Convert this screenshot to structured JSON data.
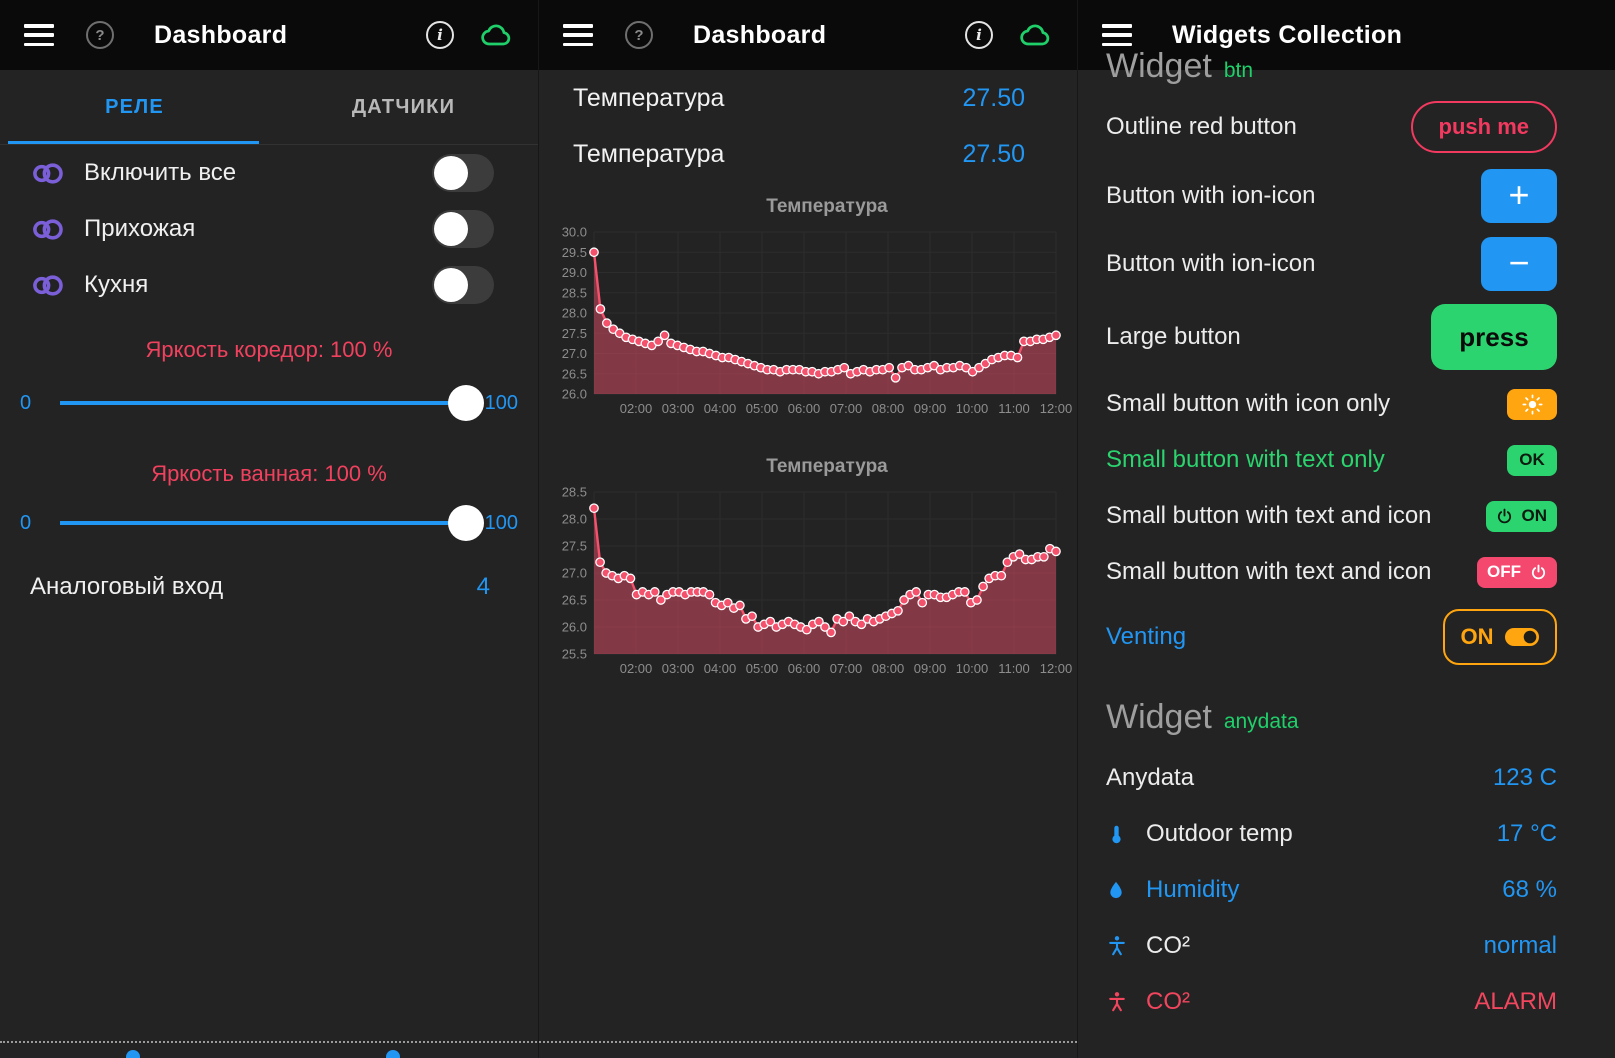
{
  "theme": {
    "blue": "#2196f3",
    "green": "#2bd46e",
    "red": "#f2395f",
    "pink": "#f5486e",
    "amber": "#ffa50f",
    "purple": "#7a5fd8",
    "value_red": "#f2465e"
  },
  "icon_glyphs": {
    "help": "?",
    "info": "i",
    "plus": "+",
    "minus": "−"
  },
  "panels": {
    "relay": {
      "header": {
        "title": "Dashboard"
      },
      "tabs": [
        {
          "label": "РЕЛЕ"
        },
        {
          "label": "ДАТЧИКИ"
        }
      ],
      "switches": [
        {
          "label": "Включить все",
          "state": "off"
        },
        {
          "label": "Прихожая",
          "state": "off"
        },
        {
          "label": "Кухня",
          "state": "off"
        }
      ],
      "sliders": [
        {
          "label": "Яркость коредор: 100 %",
          "min": "0",
          "max": "100",
          "value": 100
        },
        {
          "label": "Яркость ванная: 100 %",
          "min": "0",
          "max": "100",
          "value": 100
        }
      ],
      "analog": {
        "label": "Аналоговый вход",
        "value": "4"
      }
    },
    "sensors": {
      "header": {
        "title": "Dashboard"
      },
      "readings": [
        {
          "label": "Температура",
          "value": "27.50"
        },
        {
          "label": "Температура",
          "value": "27.50"
        }
      ]
    },
    "widgets": {
      "header": {
        "title": "Widgets Collection"
      },
      "cropped_heading": {
        "title": "Widget",
        "tag": "btn"
      },
      "rows": [
        {
          "label": "Outline red button",
          "control": {
            "type": "outline-button",
            "text": "push me",
            "color": "red",
            "name": "push-me-button"
          }
        },
        {
          "label": "Button with ion-icon",
          "control": {
            "type": "icon-button",
            "glyph": "plus",
            "icon": "plus-icon",
            "color": "blue",
            "name": "plus-button"
          }
        },
        {
          "label": "Button with ion-icon",
          "control": {
            "type": "icon-button",
            "glyph": "minus",
            "icon": "minus-icon",
            "color": "blue",
            "name": "minus-button"
          }
        },
        {
          "label": "Large button",
          "control": {
            "type": "large-button",
            "text": "press",
            "color": "green",
            "name": "press-button"
          }
        },
        {
          "label": "Small button with icon only",
          "control": {
            "type": "small-button",
            "icon": "sun-icon",
            "color": "amber",
            "name": "sun-button"
          }
        },
        {
          "label": "Small button with text only",
          "label_color": "green",
          "control": {
            "type": "small-button",
            "text": "OK",
            "color": "green",
            "name": "ok-button"
          }
        },
        {
          "label": "Small button with text and icon",
          "control": {
            "type": "small-button",
            "icon": "power-icon",
            "icon_position": "left",
            "text": "ON",
            "color": "green",
            "name": "on-button"
          }
        },
        {
          "label": "Small button with text and icon",
          "control": {
            "type": "small-button",
            "icon": "power-icon",
            "icon_position": "right",
            "text": "OFF",
            "color": "pink",
            "name": "off-button"
          }
        },
        {
          "label": "Venting",
          "label_color": "blue",
          "control": {
            "type": "outline-toggle",
            "text": "ON",
            "icon": "toggle-on-icon",
            "color": "amber",
            "name": "venting-button"
          }
        }
      ],
      "section": {
        "title": "Widget",
        "tag": "anydata"
      },
      "data_rows": [
        {
          "label": "Anydata",
          "value": "123 C"
        },
        {
          "icon": "thermometer-icon",
          "icon_color": "blue",
          "label": "Outdoor temp",
          "value": "17 °C"
        },
        {
          "icon": "droplet-icon",
          "icon_color": "blue",
          "label": "Humidity",
          "label_color": "blue",
          "value": "68 %"
        },
        {
          "icon": "person-icon",
          "icon_color": "blue",
          "label": "CO²",
          "value": "normal"
        },
        {
          "icon": "person-icon",
          "icon_color": "value_red",
          "label": "CO²",
          "label_color": "value_red",
          "value": "ALARM",
          "value_color": "value_red"
        }
      ]
    }
  },
  "chart_data": [
    {
      "type": "line",
      "title": "Температура",
      "area": true,
      "grid": true,
      "legend": "none",
      "ylim": [
        26.0,
        30.0
      ],
      "y_ticks": [
        30.0,
        29.5,
        29.0,
        28.5,
        28.0,
        27.5,
        27.0,
        26.5,
        26.0
      ],
      "x_labels": [
        "02:00",
        "03:00",
        "04:00",
        "05:00",
        "06:00",
        "07:00",
        "08:00",
        "09:00",
        "10:00",
        "11:00",
        "12:00"
      ],
      "values": [
        29.5,
        28.1,
        27.75,
        27.6,
        27.5,
        27.4,
        27.35,
        27.3,
        27.25,
        27.2,
        27.3,
        27.45,
        27.25,
        27.2,
        27.15,
        27.1,
        27.05,
        27.05,
        27.0,
        26.95,
        26.9,
        26.9,
        26.85,
        26.8,
        26.75,
        26.7,
        26.65,
        26.6,
        26.6,
        26.55,
        26.6,
        26.6,
        26.6,
        26.55,
        26.55,
        26.5,
        26.55,
        26.55,
        26.6,
        26.65,
        26.5,
        26.55,
        26.6,
        26.55,
        26.6,
        26.6,
        26.65,
        26.4,
        26.65,
        26.7,
        26.6,
        26.6,
        26.65,
        26.7,
        26.6,
        26.65,
        26.65,
        26.7,
        26.65,
        26.55,
        26.65,
        26.75,
        26.85,
        26.9,
        26.95,
        26.95,
        26.9,
        27.3,
        27.3,
        27.35,
        27.35,
        27.4,
        27.45
      ],
      "line_color": "#f4516c",
      "fill_color": "rgba(244,81,108,0.46)"
    },
    {
      "type": "line",
      "title": "Температура",
      "area": true,
      "grid": true,
      "legend": "none",
      "ylim": [
        25.5,
        28.5
      ],
      "y_ticks": [
        28.5,
        28.0,
        27.5,
        27.0,
        26.5,
        26.0,
        25.5
      ],
      "x_labels": [
        "02:00",
        "03:00",
        "04:00",
        "05:00",
        "06:00",
        "07:00",
        "08:00",
        "09:00",
        "10:00",
        "11:00",
        "12:00"
      ],
      "values": [
        28.2,
        27.2,
        27.0,
        26.95,
        26.9,
        26.95,
        26.9,
        26.6,
        26.65,
        26.6,
        26.65,
        26.5,
        26.6,
        26.65,
        26.65,
        26.6,
        26.65,
        26.65,
        26.65,
        26.6,
        26.45,
        26.4,
        26.45,
        26.35,
        26.4,
        26.15,
        26.2,
        26.0,
        26.05,
        26.1,
        26.0,
        26.05,
        26.1,
        26.05,
        26.0,
        25.95,
        26.05,
        26.1,
        26.0,
        25.9,
        26.15,
        26.1,
        26.2,
        26.1,
        26.05,
        26.15,
        26.1,
        26.15,
        26.2,
        26.25,
        26.3,
        26.5,
        26.6,
        26.65,
        26.45,
        26.6,
        26.6,
        26.55,
        26.55,
        26.6,
        26.65,
        26.65,
        26.45,
        26.5,
        26.75,
        26.9,
        26.95,
        26.95,
        27.2,
        27.3,
        27.35,
        27.25,
        27.25,
        27.3,
        27.3,
        27.45,
        27.4
      ],
      "line_color": "#f4516c",
      "fill_color": "rgba(244,81,108,0.46)"
    }
  ]
}
